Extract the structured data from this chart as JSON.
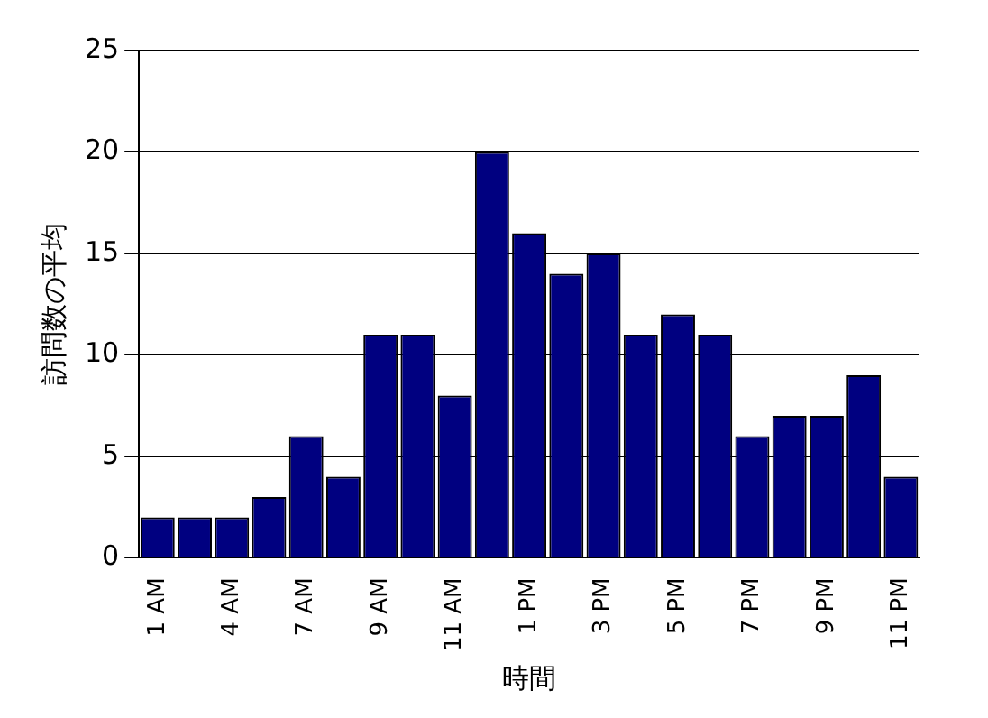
{
  "chart_data": {
    "type": "bar",
    "xlabel": "時間",
    "ylabel": "訪問数の平均",
    "categories": [
      "1 AM",
      null,
      "4 AM",
      null,
      "7 AM",
      null,
      "9 AM",
      null,
      "11 AM",
      null,
      "1 PM",
      null,
      "3 PM",
      null,
      "5 PM",
      null,
      "7 PM",
      null,
      "9 PM",
      null,
      "11 PM"
    ],
    "values": [
      2,
      2,
      2,
      3,
      6,
      4,
      11,
      11,
      8,
      20,
      16,
      14,
      15,
      11,
      12,
      11,
      6,
      7,
      7,
      9,
      4
    ],
    "color": "#000080",
    "ylim": [
      0,
      25
    ],
    "yticks": [
      0,
      5,
      10,
      15,
      20,
      25
    ],
    "grid": "y"
  }
}
